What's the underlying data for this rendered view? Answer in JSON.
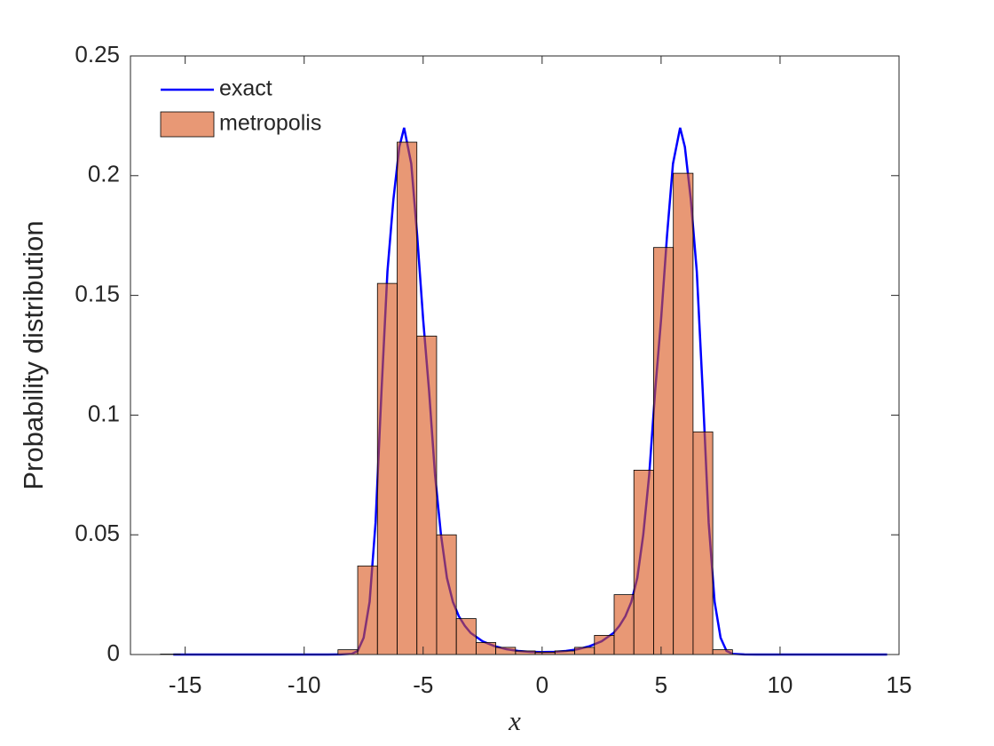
{
  "chart_data": {
    "type": "histogram",
    "xlabel": "x",
    "ylabel": "Probability distribution",
    "xlim": [
      -17.3,
      15
    ],
    "ylim": [
      0,
      0.25
    ],
    "xticks": [
      -15,
      -10,
      -5,
      0,
      5,
      10,
      15
    ],
    "yticks": [
      0,
      0.05,
      0.1,
      0.15,
      0.2,
      0.25
    ],
    "legend": "northwest",
    "line": {
      "name": "exact",
      "color": "#0000ff",
      "x": [
        -15.5,
        -12,
        -9,
        -8.5,
        -8,
        -7.75,
        -7.5,
        -7.25,
        -7,
        -6.75,
        -6.5,
        -6.25,
        -6,
        -5.8,
        -5.5,
        -5.25,
        -5,
        -4.75,
        -4.5,
        -4.25,
        -4,
        -3.75,
        -3.5,
        -3.25,
        -3,
        -2.5,
        -2,
        -1.5,
        -1,
        -0.5,
        0,
        0.5,
        1,
        1.5,
        2,
        2.5,
        3,
        3.25,
        3.5,
        3.75,
        4,
        4.25,
        4.5,
        4.75,
        5,
        5.25,
        5.5,
        5.8,
        6,
        6.25,
        6.5,
        6.75,
        7,
        7.25,
        7.5,
        7.75,
        8,
        8.5,
        9,
        12,
        14.5
      ],
      "values": [
        0,
        0,
        0,
        5e-05,
        0.0003,
        0.0015,
        0.007,
        0.022,
        0.055,
        0.11,
        0.16,
        0.19,
        0.212,
        0.22,
        0.205,
        0.175,
        0.14,
        0.11,
        0.075,
        0.05,
        0.032,
        0.022,
        0.016,
        0.012,
        0.009,
        0.0055,
        0.0035,
        0.0022,
        0.0015,
        0.0011,
        0.001,
        0.0011,
        0.0015,
        0.0022,
        0.0035,
        0.0055,
        0.009,
        0.012,
        0.016,
        0.022,
        0.032,
        0.05,
        0.075,
        0.11,
        0.14,
        0.175,
        0.205,
        0.22,
        0.212,
        0.19,
        0.16,
        0.11,
        0.055,
        0.022,
        0.007,
        0.0015,
        0.0003,
        5e-05,
        0,
        0,
        0
      ]
    },
    "histogram": {
      "name": "metropolis",
      "color": "#d95319",
      "opacity": 0.6,
      "bins": [
        -16.04,
        -15.211,
        -14.382,
        -13.553,
        -12.724,
        -11.895,
        -11.066,
        -10.237,
        -9.408,
        -8.579,
        -7.75,
        -6.921,
        -6.092,
        -5.263,
        -4.434,
        -3.605,
        -2.776,
        -1.947,
        -1.118,
        -0.289,
        0.54,
        1.369,
        2.198,
        3.027,
        3.856,
        4.685,
        5.514,
        6.343,
        7.172,
        8.001
      ],
      "values": [
        0.0002,
        0,
        0,
        0,
        0,
        0,
        0,
        0,
        0,
        0.002,
        0.037,
        0.155,
        0.214,
        0.133,
        0.05,
        0.015,
        0.005,
        0.003,
        0.0015,
        0.001,
        0.0015,
        0.003,
        0.008,
        0.025,
        0.077,
        0.17,
        0.201,
        0.093,
        0.002
      ]
    }
  }
}
